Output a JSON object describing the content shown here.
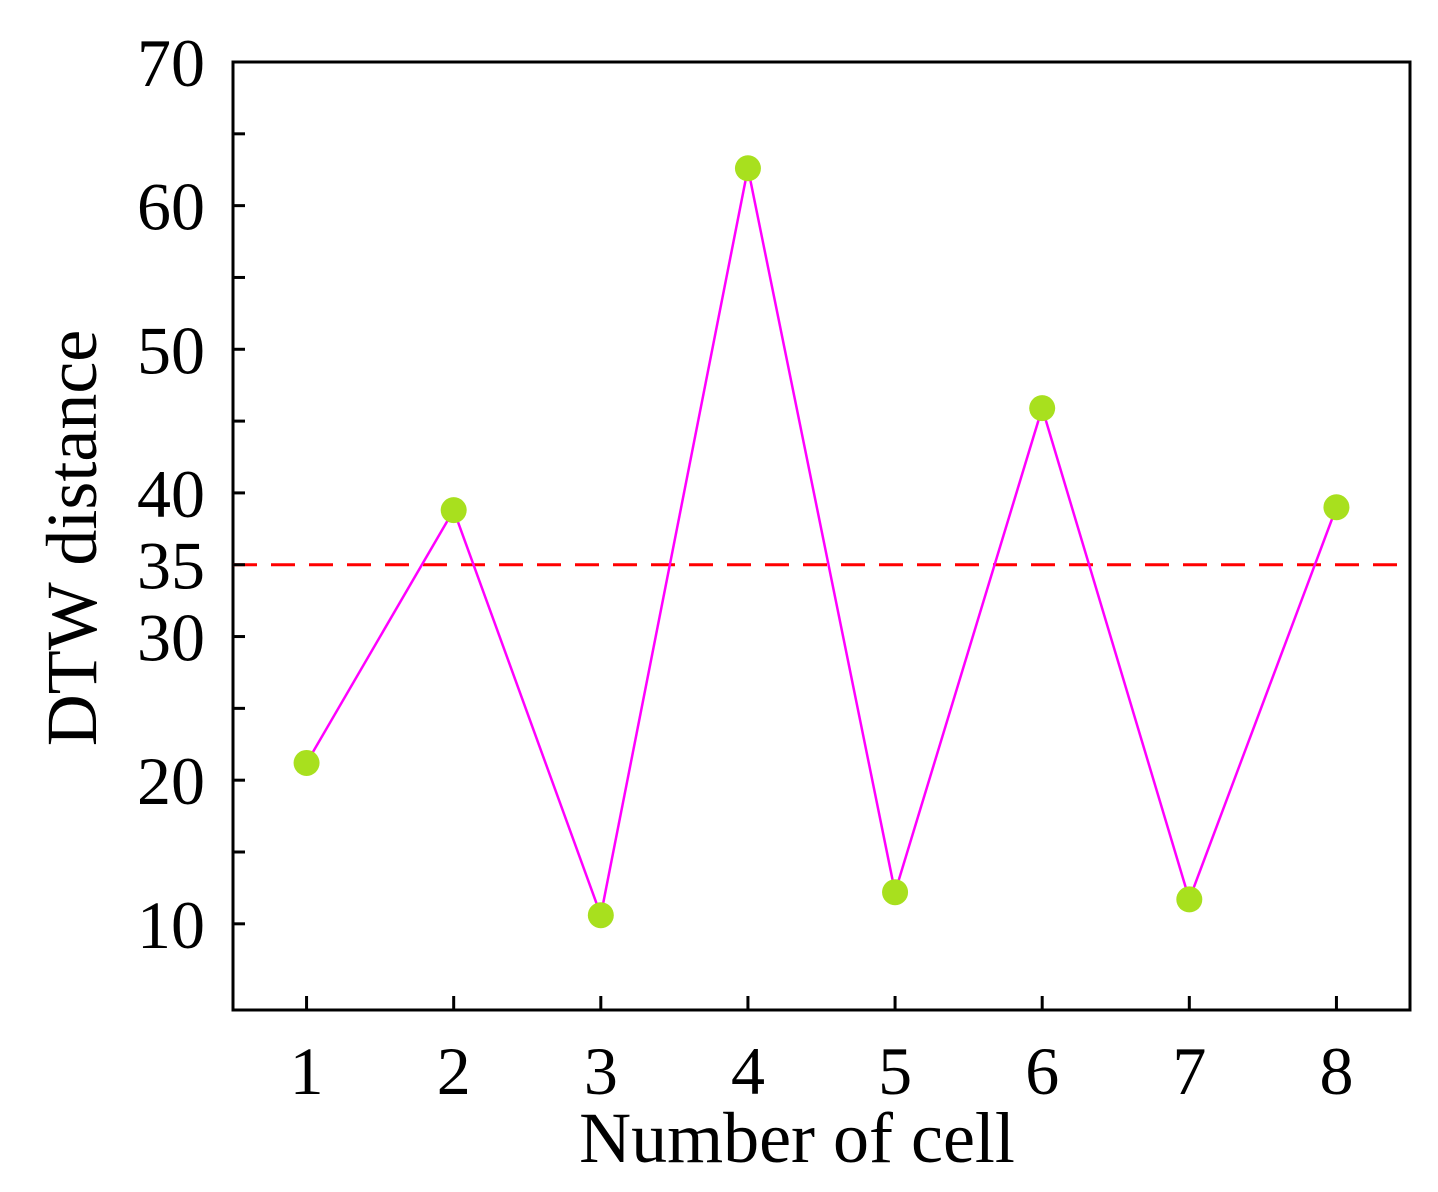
{
  "chart_data": {
    "type": "line",
    "title": "",
    "xlabel": "Number of cell",
    "ylabel": "DTW distance",
    "x": [
      1,
      2,
      3,
      4,
      5,
      6,
      7,
      8
    ],
    "x_ticks": [
      "1",
      "2",
      "3",
      "4",
      "5",
      "6",
      "7",
      "8"
    ],
    "xlim": [
      0.5,
      8.5
    ],
    "ylim": [
      4,
      70
    ],
    "y_ticks": [
      10,
      20,
      30,
      35,
      40,
      50,
      60,
      70
    ],
    "y_minor_ticks": [
      15,
      25,
      45,
      55,
      65
    ],
    "series": [
      {
        "values": [
          21.2,
          38.8,
          10.6,
          62.6,
          12.2,
          45.9,
          11.7,
          39.0
        ],
        "line_color": "#ff00ff",
        "marker_color": "#a8e01e"
      }
    ],
    "reference_lines": [
      {
        "axis": "y",
        "value": 35,
        "style": "dashed",
        "color": "#ff0000"
      }
    ],
    "grid": false,
    "legend": "none"
  }
}
